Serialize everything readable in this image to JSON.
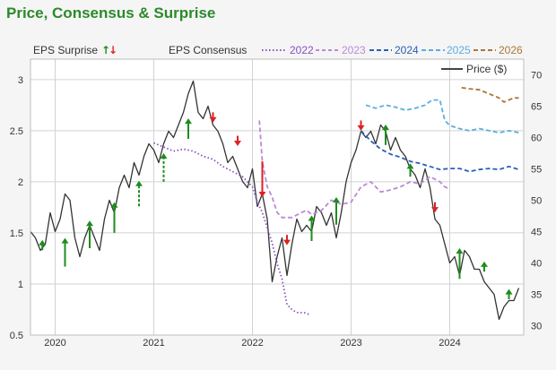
{
  "title": "Price, Consensus & Surprise",
  "chart_data": {
    "type": "line",
    "title": "Price, Consensus & Surprise",
    "x_axis": {
      "range": [
        2019.75,
        2024.75
      ],
      "ticks": [
        "2020",
        "2021",
        "2022",
        "2023",
        "2024"
      ],
      "tick_values": [
        2020,
        2021,
        2022,
        2023,
        2024
      ]
    },
    "y_left": {
      "label": "",
      "range": [
        0.5,
        3.2
      ],
      "ticks": [
        "0.5",
        "1",
        "1.5",
        "2",
        "2.5",
        "3"
      ],
      "tick_values": [
        0.5,
        1,
        1.5,
        2,
        2.5,
        3
      ]
    },
    "y_right": {
      "label": "",
      "range": [
        28.5,
        72.5
      ],
      "ticks": [
        "30",
        "35",
        "40",
        "45",
        "50",
        "55",
        "60",
        "65",
        "70"
      ],
      "tick_values": [
        30,
        35,
        40,
        45,
        50,
        55,
        60,
        65,
        70
      ]
    },
    "grid": true,
    "legend": {
      "surprise_label": "EPS Surprise",
      "up_glyph": "↑",
      "down_glyph": "↓",
      "consensus_label": "EPS Consensus",
      "items": [
        "2022",
        "2023",
        "2024",
        "2025",
        "2026"
      ],
      "price_label": "Price ($)"
    },
    "colors": {
      "price": "#333333",
      "up": "#1e8c1e",
      "down": "#dd2222",
      "c2022": "#8a4fbf",
      "c2023": "#b98ad6",
      "c2024": "#2a60b8",
      "c2025": "#5aaee0",
      "c2026": "#a8783a",
      "grid": "#d2d2d2"
    },
    "series": [
      {
        "name": "Price ($)",
        "axis": "right",
        "style": "solid",
        "color_key": "price",
        "points": [
          [
            2019.75,
            45
          ],
          [
            2019.8,
            44
          ],
          [
            2019.85,
            42
          ],
          [
            2019.9,
            43
          ],
          [
            2019.95,
            48
          ],
          [
            2020.0,
            45
          ],
          [
            2020.05,
            47
          ],
          [
            2020.1,
            51
          ],
          [
            2020.15,
            50
          ],
          [
            2020.2,
            44
          ],
          [
            2020.25,
            41
          ],
          [
            2020.3,
            44
          ],
          [
            2020.35,
            46
          ],
          [
            2020.4,
            44
          ],
          [
            2020.45,
            42
          ],
          [
            2020.5,
            47
          ],
          [
            2020.55,
            50
          ],
          [
            2020.6,
            48
          ],
          [
            2020.65,
            52
          ],
          [
            2020.7,
            54
          ],
          [
            2020.75,
            52
          ],
          [
            2020.8,
            56
          ],
          [
            2020.85,
            54
          ],
          [
            2020.9,
            57
          ],
          [
            2020.95,
            59
          ],
          [
            2021.0,
            58
          ],
          [
            2021.05,
            56
          ],
          [
            2021.1,
            59
          ],
          [
            2021.15,
            61
          ],
          [
            2021.2,
            60
          ],
          [
            2021.25,
            62
          ],
          [
            2021.3,
            64
          ],
          [
            2021.35,
            67
          ],
          [
            2021.4,
            69
          ],
          [
            2021.45,
            64
          ],
          [
            2021.5,
            63
          ],
          [
            2021.55,
            65
          ],
          [
            2021.6,
            62
          ],
          [
            2021.65,
            61
          ],
          [
            2021.7,
            59
          ],
          [
            2021.75,
            56
          ],
          [
            2021.8,
            57
          ],
          [
            2021.85,
            55
          ],
          [
            2021.9,
            53
          ],
          [
            2021.95,
            52
          ],
          [
            2022.0,
            55
          ],
          [
            2022.05,
            49
          ],
          [
            2022.1,
            51
          ],
          [
            2022.15,
            47
          ],
          [
            2022.2,
            37
          ],
          [
            2022.25,
            41
          ],
          [
            2022.3,
            44
          ],
          [
            2022.35,
            38
          ],
          [
            2022.4,
            43
          ],
          [
            2022.45,
            47
          ],
          [
            2022.5,
            45
          ],
          [
            2022.55,
            46
          ],
          [
            2022.6,
            45
          ],
          [
            2022.65,
            49
          ],
          [
            2022.7,
            48
          ],
          [
            2022.75,
            46
          ],
          [
            2022.8,
            48
          ],
          [
            2022.85,
            44
          ],
          [
            2022.9,
            48
          ],
          [
            2022.95,
            53
          ],
          [
            2023.0,
            56
          ],
          [
            2023.05,
            58
          ],
          [
            2023.1,
            61
          ],
          [
            2023.15,
            60
          ],
          [
            2023.2,
            61
          ],
          [
            2023.25,
            59
          ],
          [
            2023.3,
            62
          ],
          [
            2023.35,
            61
          ],
          [
            2023.4,
            58
          ],
          [
            2023.45,
            60
          ],
          [
            2023.5,
            58
          ],
          [
            2023.55,
            57
          ],
          [
            2023.6,
            55
          ],
          [
            2023.65,
            54
          ],
          [
            2023.7,
            52
          ],
          [
            2023.75,
            55
          ],
          [
            2023.8,
            52
          ],
          [
            2023.85,
            47
          ],
          [
            2023.9,
            46
          ],
          [
            2023.95,
            43
          ],
          [
            2024.0,
            40
          ],
          [
            2024.05,
            41
          ],
          [
            2024.1,
            38
          ],
          [
            2024.15,
            42
          ],
          [
            2024.2,
            41
          ],
          [
            2024.25,
            39
          ],
          [
            2024.3,
            39
          ],
          [
            2024.35,
            37
          ],
          [
            2024.4,
            36
          ],
          [
            2024.45,
            35
          ],
          [
            2024.5,
            31
          ],
          [
            2024.55,
            33
          ],
          [
            2024.6,
            34
          ],
          [
            2024.65,
            34
          ],
          [
            2024.7,
            36
          ]
        ]
      },
      {
        "name": "2022",
        "axis": "left",
        "style": "dotted",
        "color_key": "c2022",
        "points": [
          [
            2021.0,
            2.38
          ],
          [
            2021.1,
            2.34
          ],
          [
            2021.2,
            2.3
          ],
          [
            2021.3,
            2.32
          ],
          [
            2021.4,
            2.3
          ],
          [
            2021.5,
            2.25
          ],
          [
            2021.6,
            2.22
          ],
          [
            2021.7,
            2.15
          ],
          [
            2021.8,
            2.1
          ],
          [
            2021.9,
            2.05
          ],
          [
            2022.0,
            1.95
          ],
          [
            2022.05,
            1.8
          ],
          [
            2022.1,
            1.7
          ],
          [
            2022.15,
            1.55
          ],
          [
            2022.2,
            1.4
          ],
          [
            2022.25,
            1.2
          ],
          [
            2022.3,
            1.05
          ],
          [
            2022.35,
            0.8
          ],
          [
            2022.4,
            0.75
          ],
          [
            2022.45,
            0.72
          ],
          [
            2022.52,
            0.72
          ],
          [
            2022.58,
            0.7
          ]
        ]
      },
      {
        "name": "2023",
        "axis": "left",
        "style": "dashed",
        "color_key": "c2023",
        "points": [
          [
            2022.07,
            2.6
          ],
          [
            2022.1,
            2.2
          ],
          [
            2022.15,
            1.95
          ],
          [
            2022.2,
            1.85
          ],
          [
            2022.25,
            1.7
          ],
          [
            2022.3,
            1.65
          ],
          [
            2022.4,
            1.65
          ],
          [
            2022.5,
            1.7
          ],
          [
            2022.55,
            1.72
          ],
          [
            2022.6,
            1.68
          ],
          [
            2022.7,
            1.72
          ],
          [
            2022.8,
            1.82
          ],
          [
            2022.9,
            1.78
          ],
          [
            2023.0,
            1.8
          ],
          [
            2023.1,
            1.95
          ],
          [
            2023.2,
            2.0
          ],
          [
            2023.3,
            1.9
          ],
          [
            2023.4,
            1.92
          ],
          [
            2023.5,
            1.95
          ],
          [
            2023.6,
            2.0
          ],
          [
            2023.7,
            1.98
          ],
          [
            2023.8,
            2.05
          ],
          [
            2023.9,
            2.0
          ],
          [
            2023.95,
            1.95
          ],
          [
            2024.0,
            1.93
          ]
        ]
      },
      {
        "name": "2024",
        "axis": "left",
        "style": "dashed",
        "color_key": "c2024",
        "points": [
          [
            2023.1,
            2.5
          ],
          [
            2023.2,
            2.4
          ],
          [
            2023.3,
            2.32
          ],
          [
            2023.4,
            2.27
          ],
          [
            2023.5,
            2.24
          ],
          [
            2023.6,
            2.2
          ],
          [
            2023.7,
            2.18
          ],
          [
            2023.8,
            2.15
          ],
          [
            2023.9,
            2.12
          ],
          [
            2024.0,
            2.13
          ],
          [
            2024.1,
            2.13
          ],
          [
            2024.2,
            2.1
          ],
          [
            2024.3,
            2.12
          ],
          [
            2024.4,
            2.13
          ],
          [
            2024.5,
            2.12
          ],
          [
            2024.6,
            2.15
          ],
          [
            2024.7,
            2.12
          ]
        ]
      },
      {
        "name": "2025",
        "axis": "left",
        "style": "dashed",
        "color_key": "c2025",
        "points": [
          [
            2023.15,
            2.75
          ],
          [
            2023.25,
            2.72
          ],
          [
            2023.35,
            2.75
          ],
          [
            2023.45,
            2.73
          ],
          [
            2023.55,
            2.7
          ],
          [
            2023.65,
            2.72
          ],
          [
            2023.75,
            2.75
          ],
          [
            2023.82,
            2.8
          ],
          [
            2023.9,
            2.8
          ],
          [
            2023.95,
            2.6
          ],
          [
            2024.0,
            2.55
          ],
          [
            2024.1,
            2.52
          ],
          [
            2024.2,
            2.5
          ],
          [
            2024.3,
            2.52
          ],
          [
            2024.4,
            2.5
          ],
          [
            2024.5,
            2.48
          ],
          [
            2024.6,
            2.5
          ],
          [
            2024.7,
            2.48
          ]
        ]
      },
      {
        "name": "2026",
        "axis": "left",
        "style": "dashed",
        "color_key": "c2026",
        "points": [
          [
            2024.12,
            2.92
          ],
          [
            2024.2,
            2.91
          ],
          [
            2024.3,
            2.9
          ],
          [
            2024.4,
            2.86
          ],
          [
            2024.5,
            2.82
          ],
          [
            2024.55,
            2.78
          ],
          [
            2024.6,
            2.8
          ],
          [
            2024.65,
            2.82
          ],
          [
            2024.7,
            2.82
          ]
        ]
      }
    ],
    "surprise_arrows": [
      {
        "x": 2019.87,
        "y": 1.33,
        "dir": "up",
        "len": 0.1
      },
      {
        "x": 2020.1,
        "y": 1.17,
        "dir": "up",
        "len": 0.28
      },
      {
        "x": 2020.35,
        "y": 1.35,
        "dir": "up",
        "len": 0.27
      },
      {
        "x": 2020.6,
        "y": 1.5,
        "dir": "up",
        "len": 0.3
      },
      {
        "x": 2020.85,
        "y": 1.76,
        "dir": "up",
        "len": 0.25,
        "dashed": true
      },
      {
        "x": 2021.1,
        "y": 2.0,
        "dir": "up",
        "len": 0.28,
        "dashed": true
      },
      {
        "x": 2021.35,
        "y": 2.42,
        "dir": "up",
        "len": 0.2
      },
      {
        "x": 2021.6,
        "y": 2.68,
        "dir": "down",
        "len": 0.1
      },
      {
        "x": 2021.85,
        "y": 2.45,
        "dir": "down",
        "len": 0.1
      },
      {
        "x": 2022.1,
        "y": 2.2,
        "dir": "down",
        "len": 0.35
      },
      {
        "x": 2022.35,
        "y": 1.48,
        "dir": "down",
        "len": 0.1
      },
      {
        "x": 2022.6,
        "y": 1.42,
        "dir": "up",
        "len": 0.25
      },
      {
        "x": 2022.85,
        "y": 1.58,
        "dir": "up",
        "len": 0.27
      },
      {
        "x": 2023.1,
        "y": 2.6,
        "dir": "down",
        "len": 0.1
      },
      {
        "x": 2023.35,
        "y": 2.36,
        "dir": "up",
        "len": 0.2
      },
      {
        "x": 2023.6,
        "y": 2.05,
        "dir": "up",
        "len": 0.13
      },
      {
        "x": 2023.85,
        "y": 1.8,
        "dir": "down",
        "len": 0.1
      },
      {
        "x": 2024.1,
        "y": 1.05,
        "dir": "up",
        "len": 0.3
      },
      {
        "x": 2024.35,
        "y": 1.12,
        "dir": "up",
        "len": 0.1
      },
      {
        "x": 2024.6,
        "y": 0.85,
        "dir": "up",
        "len": 0.1
      }
    ]
  }
}
